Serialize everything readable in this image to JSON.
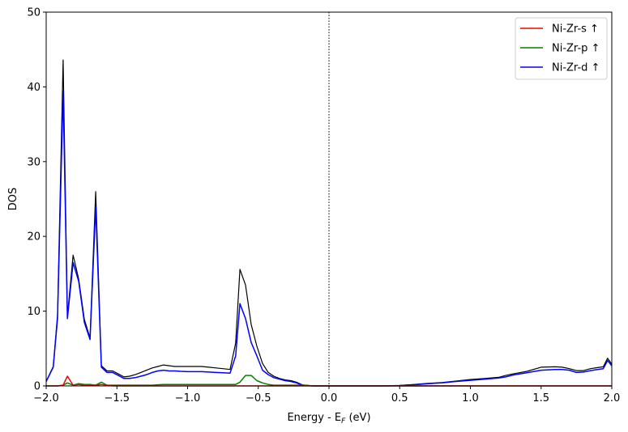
{
  "chart_data": {
    "type": "line",
    "title": "",
    "xlabel": "Energy - E",
    "xlabel_sub": "F",
    "xlabel_suffix": " (eV)",
    "ylabel": "DOS",
    "xlim": [
      -2.0,
      2.0
    ],
    "ylim": [
      0,
      50
    ],
    "xticks": [
      -2.0,
      -1.5,
      -1.0,
      -0.5,
      0.0,
      0.5,
      1.0,
      1.5,
      2.0
    ],
    "xtick_labels": [
      "−2.0",
      "−1.5",
      "−1.0",
      "−0.5",
      "0.0",
      "0.5",
      "1.0",
      "1.5",
      "2.0"
    ],
    "yticks": [
      0,
      10,
      20,
      30,
      40,
      50
    ],
    "ytick_labels": [
      "0",
      "10",
      "20",
      "30",
      "40",
      "50"
    ],
    "grid": false,
    "legend_position": "top-right",
    "fermi_level_line": {
      "x": 0.0,
      "style": "dotted",
      "color": "#000000"
    },
    "x": [
      -2.0,
      -1.95,
      -1.92,
      -1.88,
      -1.85,
      -1.81,
      -1.77,
      -1.73,
      -1.69,
      -1.65,
      -1.61,
      -1.57,
      -1.53,
      -1.49,
      -1.45,
      -1.41,
      -1.37,
      -1.33,
      -1.29,
      -1.25,
      -1.21,
      -1.17,
      -1.13,
      -1.09,
      -1.05,
      -1.0,
      -0.95,
      -0.9,
      -0.85,
      -0.8,
      -0.75,
      -0.7,
      -0.66,
      -0.63,
      -0.59,
      -0.55,
      -0.51,
      -0.47,
      -0.43,
      -0.39,
      -0.35,
      -0.31,
      -0.27,
      -0.23,
      -0.19,
      -0.15,
      -0.11,
      -0.07,
      -0.03,
      0.0,
      0.1,
      0.2,
      0.3,
      0.4,
      0.5,
      0.6,
      0.7,
      0.8,
      0.9,
      1.0,
      1.1,
      1.2,
      1.25,
      1.3,
      1.4,
      1.5,
      1.6,
      1.65,
      1.7,
      1.75,
      1.8,
      1.85,
      1.9,
      1.94,
      1.97,
      2.0
    ],
    "series": [
      {
        "name": "Ni-Zr-s ↑",
        "color": "#ff0000",
        "in_legend": true,
        "values": [
          0.0,
          0.0,
          0.0,
          0.1,
          1.3,
          0.1,
          0.2,
          0.1,
          0.1,
          0.1,
          0.2,
          0.1,
          0.0,
          0.0,
          0.0,
          0.0,
          0.0,
          0.0,
          0.0,
          0.0,
          0.0,
          0.0,
          0.0,
          0.0,
          0.0,
          0.0,
          0.0,
          0.0,
          0.0,
          0.0,
          0.0,
          0.0,
          0.0,
          0.0,
          0.0,
          0.0,
          0.0,
          0.0,
          0.0,
          0.0,
          0.0,
          0.0,
          0.0,
          0.0,
          0.0,
          0.0,
          0.0,
          0.0,
          0.0,
          0.0,
          0.0,
          0.0,
          0.0,
          0.0,
          0.0,
          0.0,
          0.0,
          0.0,
          0.0,
          0.0,
          0.0,
          0.0,
          0.0,
          0.0,
          0.0,
          0.0,
          0.0,
          0.0,
          0.0,
          0.0,
          0.0,
          0.0,
          0.0,
          0.0,
          0.0,
          0.0
        ]
      },
      {
        "name": "Ni-Zr-p ↑",
        "color": "#008000",
        "in_legend": true,
        "values": [
          0.0,
          0.0,
          0.0,
          0.1,
          0.4,
          0.1,
          0.3,
          0.2,
          0.2,
          0.1,
          0.5,
          0.1,
          0.1,
          0.1,
          0.1,
          0.1,
          0.1,
          0.1,
          0.1,
          0.1,
          0.15,
          0.2,
          0.2,
          0.2,
          0.2,
          0.2,
          0.2,
          0.2,
          0.2,
          0.2,
          0.2,
          0.2,
          0.2,
          0.5,
          1.4,
          1.4,
          0.7,
          0.4,
          0.2,
          0.1,
          0.1,
          0.1,
          0.1,
          0.1,
          0.1,
          0.05,
          0.0,
          0.0,
          0.0,
          0.0,
          0.0,
          0.0,
          0.0,
          0.0,
          0.0,
          0.0,
          0.0,
          0.0,
          0.0,
          0.0,
          0.0,
          0.0,
          0.0,
          0.0,
          0.0,
          0.0,
          0.0,
          0.0,
          0.0,
          0.0,
          0.0,
          0.0,
          0.0,
          0.0,
          0.0,
          0.0
        ]
      },
      {
        "name": "Ni-Zr-d ↑",
        "color": "#0000ff",
        "in_legend": true,
        "values": [
          0.6,
          2.5,
          9.0,
          39.5,
          9.0,
          16.5,
          14.0,
          8.5,
          6.2,
          24.0,
          2.5,
          1.8,
          1.8,
          1.4,
          1.0,
          1.0,
          1.1,
          1.3,
          1.5,
          1.8,
          2.0,
          2.1,
          2.0,
          2.0,
          1.95,
          1.9,
          1.9,
          1.9,
          1.85,
          1.8,
          1.75,
          1.7,
          4.0,
          11.0,
          9.0,
          5.8,
          4.0,
          2.1,
          1.5,
          1.1,
          0.9,
          0.7,
          0.6,
          0.4,
          0.1,
          0.05,
          0.0,
          0.0,
          0.0,
          0.0,
          0.0,
          0.0,
          0.0,
          0.0,
          0.05,
          0.15,
          0.3,
          0.4,
          0.6,
          0.75,
          0.9,
          1.05,
          1.2,
          1.45,
          1.75,
          2.1,
          2.2,
          2.2,
          2.1,
          1.8,
          1.85,
          2.05,
          2.2,
          2.3,
          3.4,
          2.7
        ]
      },
      {
        "name": "",
        "color": "#000000",
        "in_legend": false,
        "values": [
          0.6,
          2.6,
          9.5,
          43.6,
          9.3,
          17.5,
          14.3,
          8.9,
          6.4,
          26.0,
          2.7,
          2.0,
          2.0,
          1.6,
          1.2,
          1.3,
          1.5,
          1.8,
          2.1,
          2.4,
          2.6,
          2.8,
          2.7,
          2.6,
          2.6,
          2.6,
          2.6,
          2.6,
          2.5,
          2.4,
          2.3,
          2.2,
          5.7,
          15.6,
          13.5,
          8.2,
          5.3,
          3.0,
          1.8,
          1.3,
          1.0,
          0.8,
          0.7,
          0.5,
          0.15,
          0.05,
          0.0,
          0.0,
          0.0,
          0.0,
          0.0,
          0.0,
          0.0,
          0.0,
          0.05,
          0.2,
          0.35,
          0.45,
          0.65,
          0.85,
          1.0,
          1.15,
          1.4,
          1.6,
          1.95,
          2.5,
          2.55,
          2.5,
          2.3,
          2.05,
          2.05,
          2.3,
          2.45,
          2.55,
          3.7,
          2.9
        ]
      }
    ]
  }
}
